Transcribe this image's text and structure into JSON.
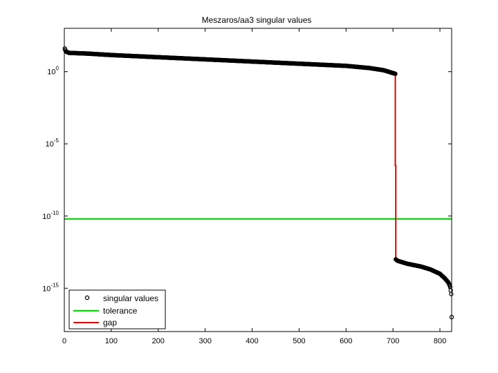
{
  "chart_data": {
    "type": "scatter",
    "title": "Meszaros/aa3 singular values",
    "xlabel": "",
    "ylabel": "",
    "xlim": [
      0,
      825
    ],
    "ylim_log10": [
      -18,
      3
    ],
    "yscale": "log",
    "x_ticks": [
      0,
      100,
      200,
      300,
      400,
      500,
      600,
      700,
      800
    ],
    "y_ticks": [
      {
        "base": "10",
        "exp": "0",
        "log10": 0
      },
      {
        "base": "10",
        "exp": "-5",
        "log10": -5
      },
      {
        "base": "10",
        "exp": "-10",
        "log10": -10
      },
      {
        "base": "10",
        "exp": "-15",
        "log10": -15
      }
    ],
    "grid": false,
    "legend_position": "bottom-left",
    "series": [
      {
        "name": "singular values",
        "kind": "markers",
        "marker": "circle",
        "color": "#000000",
        "n_points": 825,
        "segments": [
          {
            "index_range": [
              1,
              705
            ],
            "log10_profile": [
              [
                1,
                1.6
              ],
              [
                3,
                1.4
              ],
              [
                10,
                1.3
              ],
              [
                50,
                1.25
              ],
              [
                100,
                1.15
              ],
              [
                200,
                1.0
              ],
              [
                300,
                0.85
              ],
              [
                400,
                0.7
              ],
              [
                500,
                0.55
              ],
              [
                600,
                0.4
              ],
              [
                650,
                0.25
              ],
              [
                680,
                0.1
              ],
              [
                700,
                -0.1
              ],
              [
                705,
                -0.15
              ]
            ]
          },
          {
            "index_range": [
              706,
              825
            ],
            "log10_profile": [
              [
                706,
                -13.0
              ],
              [
                710,
                -13.1
              ],
              [
                730,
                -13.3
              ],
              [
                760,
                -13.5
              ],
              [
                780,
                -13.7
              ],
              [
                800,
                -14.0
              ],
              [
                810,
                -14.3
              ],
              [
                818,
                -14.6
              ],
              [
                822,
                -14.9
              ],
              [
                824,
                -15.4
              ],
              [
                825,
                -17.0
              ]
            ]
          }
        ]
      },
      {
        "name": "tolerance",
        "kind": "hline",
        "color": "#00cc00",
        "log10_value": -10.2
      },
      {
        "name": "gap",
        "kind": "step",
        "color": "#dd0000",
        "points_log10": [
          [
            705,
            -0.15
          ],
          [
            705,
            -6.5
          ],
          [
            706,
            -6.5
          ],
          [
            706,
            -13.0
          ]
        ]
      }
    ]
  }
}
